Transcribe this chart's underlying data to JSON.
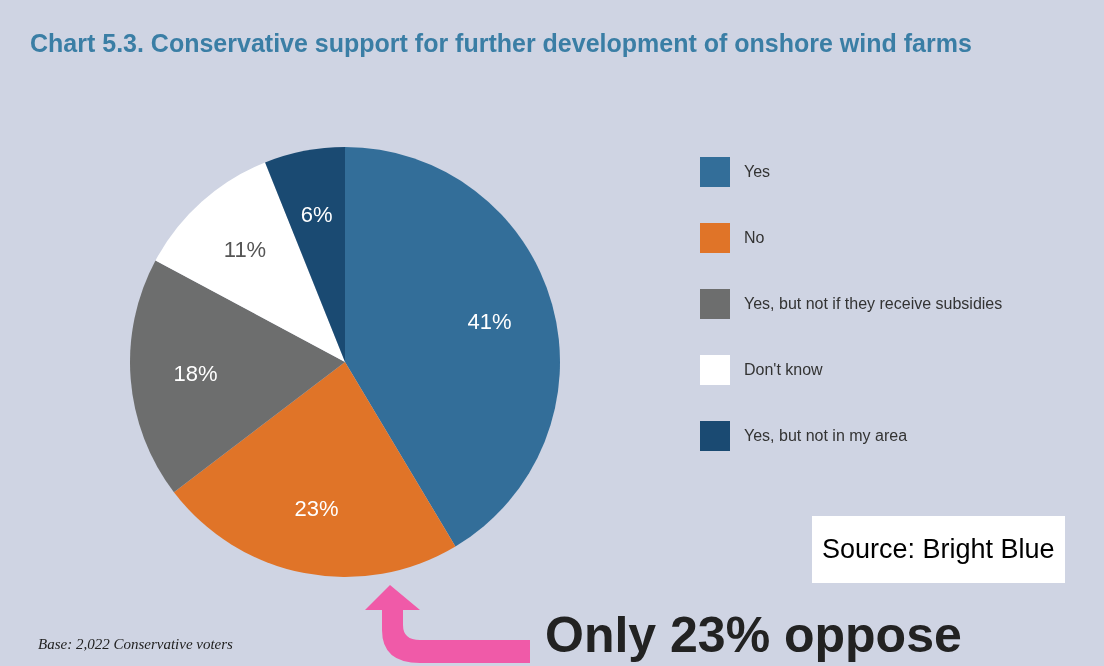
{
  "chart_data": {
    "type": "pie",
    "title": "Chart 5.3. Conservative support for further development of onshore wind farms",
    "categories": [
      "Yes",
      "No",
      "Yes, but not if they receive subsidies",
      "Don't know",
      "Yes, but not in my area"
    ],
    "values": [
      41,
      23,
      18,
      11,
      6
    ],
    "colors": [
      "#336e99",
      "#e07428",
      "#6d6e6e",
      "#ffffff",
      "#1a4a72"
    ],
    "value_labels": [
      "41%",
      "23%",
      "18%",
      "11%",
      "6%"
    ],
    "legend": "right",
    "annotations": [
      "Base: 2,022 Conservative voters",
      "Source: Bright Blue",
      "Only 23% oppose"
    ]
  }
}
